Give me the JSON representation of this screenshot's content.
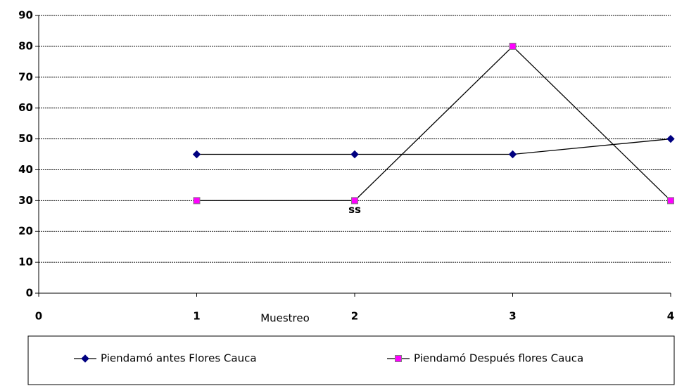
{
  "chart_data": {
    "type": "line",
    "x": [
      1,
      2,
      3,
      4
    ],
    "series": [
      {
        "name": "Piendamó antes Flores Cauca",
        "color": "#000080",
        "marker": "diamond",
        "values": [
          45,
          45,
          45,
          50
        ]
      },
      {
        "name": "Piendamó Después flores Cauca",
        "color": "#ff00ff",
        "marker": "square",
        "values": [
          30,
          30,
          80,
          30
        ]
      }
    ],
    "line_color": "#000000",
    "xlabel": "Muestreo",
    "xlim": [
      0,
      4
    ],
    "xticks": [
      0,
      1,
      2,
      3,
      4
    ],
    "ylim": [
      0,
      90
    ],
    "yticks": [
      0,
      10,
      20,
      30,
      40,
      50,
      60,
      70,
      80,
      90
    ],
    "grid": true,
    "legend": "bottom",
    "annotations": [
      {
        "text": "ss",
        "x": 2,
        "y": 27
      }
    ]
  }
}
